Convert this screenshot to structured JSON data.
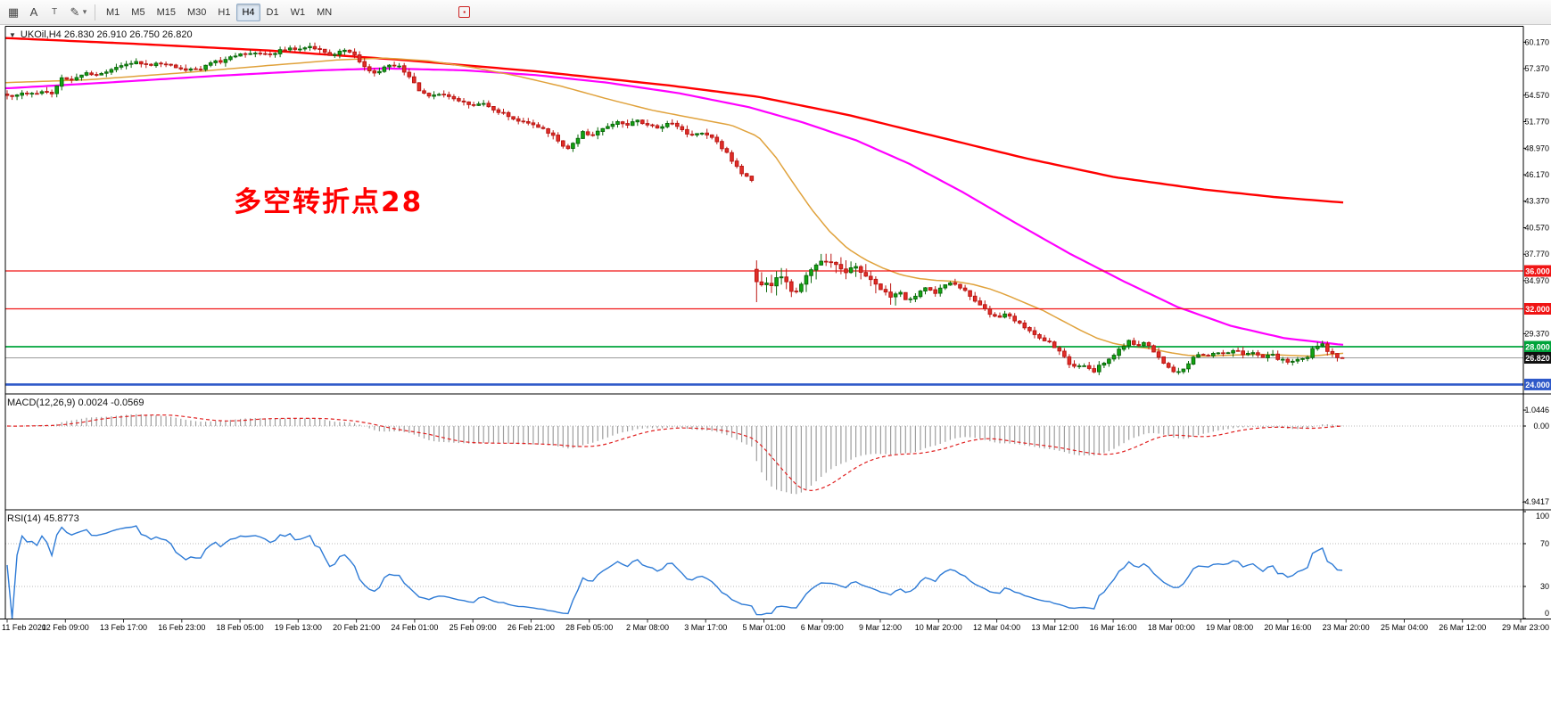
{
  "toolbar": {
    "items": [
      {
        "type": "icon",
        "name": "tick-grid-icon",
        "glyph": "▦"
      },
      {
        "type": "icon",
        "name": "text-label-icon",
        "glyph": "A"
      },
      {
        "type": "icon",
        "name": "text-frame-icon",
        "glyph": "T",
        "boxed": true
      },
      {
        "type": "icon",
        "name": "draw-tools-icon",
        "glyph": "✎"
      },
      {
        "type": "icon",
        "name": "tools-dropdown-icon",
        "glyph": "▾",
        "narrow": true
      },
      {
        "type": "sep"
      },
      {
        "type": "tf",
        "label": "M1"
      },
      {
        "type": "tf",
        "label": "M5"
      },
      {
        "type": "tf",
        "label": "M15"
      },
      {
        "type": "tf",
        "label": "M30"
      },
      {
        "type": "tf",
        "label": "H1"
      },
      {
        "type": "tf",
        "label": "H4",
        "active": true
      },
      {
        "type": "tf",
        "label": "D1"
      },
      {
        "type": "tf",
        "label": "W1"
      },
      {
        "type": "tf",
        "label": "MN"
      },
      {
        "type": "gap"
      },
      {
        "type": "icon",
        "name": "red-marker-icon",
        "glyph": "▪",
        "red": true
      }
    ]
  },
  "chart": {
    "collapse_arrow": "▼",
    "symbol_info": "UKOil,H4 26.830 26.910 26.750 26.820",
    "annotation": "多空转折点28"
  },
  "macd": {
    "header": "MACD(12,26,9) 0.0024 -0.0569"
  },
  "rsi": {
    "header": "RSI(14) 45.8773"
  },
  "chart_data": {
    "type": "candlestick",
    "symbol": "UKOil",
    "timeframe": "H4",
    "colors": {
      "up_fill": "#12a712",
      "up_stroke": "#0b680b",
      "down_fill": "#e22e29",
      "down_stroke": "#bb1713",
      "ma_fast": "#e0a23c",
      "ma_mid": "#ff00ff",
      "ma_slow": "#ff0000",
      "macd_hist": "#9e9e9e",
      "macd_signal": "#e02020",
      "rsi_line": "#2e7bd6",
      "level_line": "#b8b8b8",
      "border": "#000000"
    },
    "main": {
      "ylim": [
        23.1,
        61.8
      ],
      "candle_count": 270,
      "last_ohlc": {
        "open": 26.83,
        "high": 26.91,
        "low": 26.75,
        "close": 26.82
      },
      "axis_ticks": [
        60.17,
        57.37,
        54.57,
        51.77,
        48.97,
        46.17,
        43.37,
        40.57,
        37.77,
        34.97,
        29.37
      ],
      "hlines": [
        {
          "value": 36.0,
          "label": "36.000",
          "line": "#f01414",
          "bg": "#f01414",
          "width": 1.3
        },
        {
          "value": 32.0,
          "label": "32.000",
          "line": "#f01414",
          "bg": "#f01414",
          "width": 1.3
        },
        {
          "value": 28.0,
          "label": "28.000",
          "line": "#00a43b",
          "bg": "#00a43b",
          "width": 1.8
        },
        {
          "value": 26.82,
          "label": "26.820",
          "line": "#9a9a9a",
          "bg": "#101010",
          "width": 1
        },
        {
          "value": 24.0,
          "label": "24.000",
          "line": "#2e59c9",
          "bg": "#2e59c9",
          "width": 2.6
        }
      ],
      "close_path": [
        [
          8,
          54.4
        ],
        [
          25,
          54.7
        ],
        [
          45,
          54.9
        ],
        [
          58,
          54.6
        ],
        [
          68,
          56.3
        ],
        [
          80,
          56.0
        ],
        [
          95,
          57.0
        ],
        [
          110,
          56.6
        ],
        [
          125,
          57.2
        ],
        [
          140,
          57.8
        ],
        [
          152,
          58.2
        ],
        [
          165,
          57.7
        ],
        [
          178,
          58.1
        ],
        [
          192,
          57.6
        ],
        [
          205,
          57.4
        ],
        [
          220,
          57.2
        ],
        [
          235,
          57.9
        ],
        [
          252,
          58.3
        ],
        [
          268,
          58.8
        ],
        [
          285,
          59.1
        ],
        [
          300,
          58.8
        ],
        [
          315,
          59.3
        ],
        [
          330,
          59.5
        ],
        [
          345,
          59.7
        ],
        [
          360,
          59.3
        ],
        [
          372,
          58.8
        ],
        [
          385,
          59.2
        ],
        [
          398,
          58.9
        ],
        [
          408,
          57.6
        ],
        [
          420,
          56.9
        ],
        [
          432,
          57.5
        ],
        [
          445,
          57.8
        ],
        [
          455,
          56.9
        ],
        [
          468,
          55.3
        ],
        [
          480,
          54.3
        ],
        [
          492,
          54.8
        ],
        [
          505,
          54.3
        ],
        [
          518,
          53.8
        ],
        [
          530,
          53.3
        ],
        [
          542,
          53.7
        ],
        [
          555,
          53.0
        ],
        [
          568,
          52.4
        ],
        [
          580,
          52.0
        ],
        [
          592,
          51.7
        ],
        [
          605,
          51.2
        ],
        [
          618,
          50.4
        ],
        [
          628,
          49.4
        ],
        [
          636,
          48.8
        ],
        [
          645,
          49.9
        ],
        [
          655,
          50.7
        ],
        [
          665,
          50.3
        ],
        [
          678,
          51.1
        ],
        [
          690,
          51.8
        ],
        [
          702,
          51.5
        ],
        [
          715,
          51.9
        ],
        [
          728,
          51.4
        ],
        [
          740,
          51.1
        ],
        [
          752,
          51.6
        ],
        [
          764,
          50.9
        ],
        [
          775,
          50.2
        ],
        [
          788,
          50.6
        ],
        [
          800,
          49.9
        ],
        [
          812,
          48.8
        ],
        [
          822,
          47.4
        ],
        [
          832,
          46.3
        ],
        [
          843,
          45.7
        ],
        [
          849,
          33.6
        ],
        [
          856,
          35.1
        ],
        [
          864,
          34.2
        ],
        [
          872,
          35.7
        ],
        [
          880,
          35.0
        ],
        [
          890,
          33.4
        ],
        [
          898,
          34.5
        ],
        [
          908,
          36.1
        ],
        [
          918,
          36.8
        ],
        [
          928,
          37.1
        ],
        [
          938,
          36.6
        ],
        [
          948,
          35.9
        ],
        [
          958,
          36.5
        ],
        [
          968,
          35.5
        ],
        [
          978,
          34.9
        ],
        [
          988,
          34.1
        ],
        [
          998,
          33.3
        ],
        [
          1008,
          33.9
        ],
        [
          1018,
          32.8
        ],
        [
          1028,
          33.5
        ],
        [
          1038,
          34.1
        ],
        [
          1048,
          33.6
        ],
        [
          1058,
          34.4
        ],
        [
          1068,
          34.9
        ],
        [
          1078,
          34.2
        ],
        [
          1088,
          33.4
        ],
        [
          1098,
          32.5
        ],
        [
          1108,
          31.7
        ],
        [
          1118,
          31.0
        ],
        [
          1128,
          31.5
        ],
        [
          1138,
          30.7
        ],
        [
          1148,
          30.2
        ],
        [
          1158,
          29.5
        ],
        [
          1168,
          28.9
        ],
        [
          1178,
          28.4
        ],
        [
          1186,
          27.7
        ],
        [
          1196,
          26.5
        ],
        [
          1206,
          25.7
        ],
        [
          1216,
          26.0
        ],
        [
          1226,
          25.4
        ],
        [
          1236,
          26.2
        ],
        [
          1246,
          26.9
        ],
        [
          1256,
          27.9
        ],
        [
          1266,
          28.6
        ],
        [
          1276,
          28.2
        ],
        [
          1284,
          28.5
        ],
        [
          1294,
          27.3
        ],
        [
          1304,
          26.4
        ],
        [
          1314,
          25.5
        ],
        [
          1324,
          25.2
        ],
        [
          1334,
          26.5
        ],
        [
          1344,
          27.2
        ],
        [
          1354,
          27.0
        ],
        [
          1364,
          27.4
        ],
        [
          1374,
          27.1
        ],
        [
          1384,
          27.6
        ],
        [
          1394,
          27.2
        ],
        [
          1404,
          27.5
        ],
        [
          1414,
          26.9
        ],
        [
          1424,
          27.3
        ],
        [
          1434,
          26.7
        ],
        [
          1444,
          26.3
        ],
        [
          1454,
          26.8
        ],
        [
          1464,
          26.5
        ],
        [
          1472,
          27.8
        ],
        [
          1482,
          28.3
        ],
        [
          1492,
          27.2
        ],
        [
          1505,
          26.8
        ]
      ],
      "ma_fast": [
        [
          8,
          55.9
        ],
        [
          100,
          56.2
        ],
        [
          200,
          56.9
        ],
        [
          300,
          57.7
        ],
        [
          380,
          58.3
        ],
        [
          430,
          58.5
        ],
        [
          480,
          58.2
        ],
        [
          530,
          57.5
        ],
        [
          580,
          56.6
        ],
        [
          630,
          55.5
        ],
        [
          680,
          54.2
        ],
        [
          730,
          53.0
        ],
        [
          780,
          52.1
        ],
        [
          820,
          51.4
        ],
        [
          850,
          50.2
        ],
        [
          870,
          48.0
        ],
        [
          890,
          45.2
        ],
        [
          910,
          42.5
        ],
        [
          930,
          40.2
        ],
        [
          950,
          38.4
        ],
        [
          970,
          37.2
        ],
        [
          990,
          36.3
        ],
        [
          1010,
          35.6
        ],
        [
          1030,
          35.2
        ],
        [
          1050,
          35.0
        ],
        [
          1070,
          34.9
        ],
        [
          1090,
          34.6
        ],
        [
          1110,
          34.1
        ],
        [
          1130,
          33.4
        ],
        [
          1150,
          32.6
        ],
        [
          1170,
          31.8
        ],
        [
          1190,
          30.8
        ],
        [
          1210,
          29.8
        ],
        [
          1230,
          28.9
        ],
        [
          1250,
          28.3
        ],
        [
          1270,
          28.0
        ],
        [
          1290,
          27.8
        ],
        [
          1310,
          27.4
        ],
        [
          1330,
          27.1
        ],
        [
          1350,
          27.0
        ],
        [
          1380,
          27.1
        ],
        [
          1410,
          27.2
        ],
        [
          1440,
          27.1
        ],
        [
          1470,
          27.0
        ],
        [
          1505,
          27.3
        ]
      ],
      "ma_mid": [
        [
          8,
          55.3
        ],
        [
          120,
          55.9
        ],
        [
          240,
          56.6
        ],
        [
          360,
          57.2
        ],
        [
          430,
          57.4
        ],
        [
          520,
          57.2
        ],
        [
          600,
          56.7
        ],
        [
          680,
          55.9
        ],
        [
          760,
          54.8
        ],
        [
          840,
          53.3
        ],
        [
          900,
          51.7
        ],
        [
          960,
          49.8
        ],
        [
          1020,
          47.3
        ],
        [
          1080,
          44.3
        ],
        [
          1140,
          41.0
        ],
        [
          1200,
          37.8
        ],
        [
          1260,
          34.9
        ],
        [
          1320,
          32.2
        ],
        [
          1380,
          30.2
        ],
        [
          1440,
          28.9
        ],
        [
          1505,
          28.2
        ]
      ],
      "ma_slow": [
        [
          8,
          60.6
        ],
        [
          150,
          60.0
        ],
        [
          300,
          59.3
        ],
        [
          450,
          58.3
        ],
        [
          600,
          57.1
        ],
        [
          750,
          55.6
        ],
        [
          850,
          54.4
        ],
        [
          950,
          52.5
        ],
        [
          1050,
          50.2
        ],
        [
          1150,
          47.9
        ],
        [
          1250,
          45.9
        ],
        [
          1350,
          44.6
        ],
        [
          1430,
          43.8
        ],
        [
          1510,
          43.2
        ]
      ]
    },
    "macd": {
      "fast": 12,
      "slow": 26,
      "signal": 9,
      "value": "0.0024",
      "signal_value": "-0.0569",
      "ylim": [
        -5.35,
        1.98
      ],
      "axis_labels": [
        {
          "v": 1.0446,
          "t": "1.0446"
        },
        {
          "v": 0,
          "t": "0.00"
        },
        {
          "v": -4.9417,
          "t": "-4.9417"
        }
      ]
    },
    "rsi": {
      "period": 14,
      "value": "45.8773",
      "levels": [
        70,
        30
      ],
      "axis_labels": [
        {
          "v": 100,
          "t": "100"
        },
        {
          "v": 70,
          "t": "70"
        },
        {
          "v": 30,
          "t": "30"
        },
        {
          "v": 0,
          "t": "0"
        }
      ]
    },
    "time_axis": [
      "11 Feb 2020",
      "12 Feb 09:00",
      "13 Feb 17:00",
      "16 Feb 23:00",
      "18 Feb 05:00",
      "19 Feb 13:00",
      "20 Feb 21:00",
      "24 Feb 01:00",
      "25 Feb 09:00",
      "26 Feb 21:00",
      "28 Feb 05:00",
      "2 Mar 08:00",
      "3 Mar 17:00",
      "5 Mar 01:00",
      "6 Mar 09:00",
      "9 Mar 12:00",
      "10 Mar 20:00",
      "12 Mar 04:00",
      "13 Mar 12:00",
      "16 Mar 16:00",
      "18 Mar 00:00",
      "19 Mar 08:00",
      "20 Mar 16:00",
      "23 Mar 20:00",
      "25 Mar 04:00",
      "26 Mar 12:00",
      "29 Mar 23:00"
    ]
  }
}
